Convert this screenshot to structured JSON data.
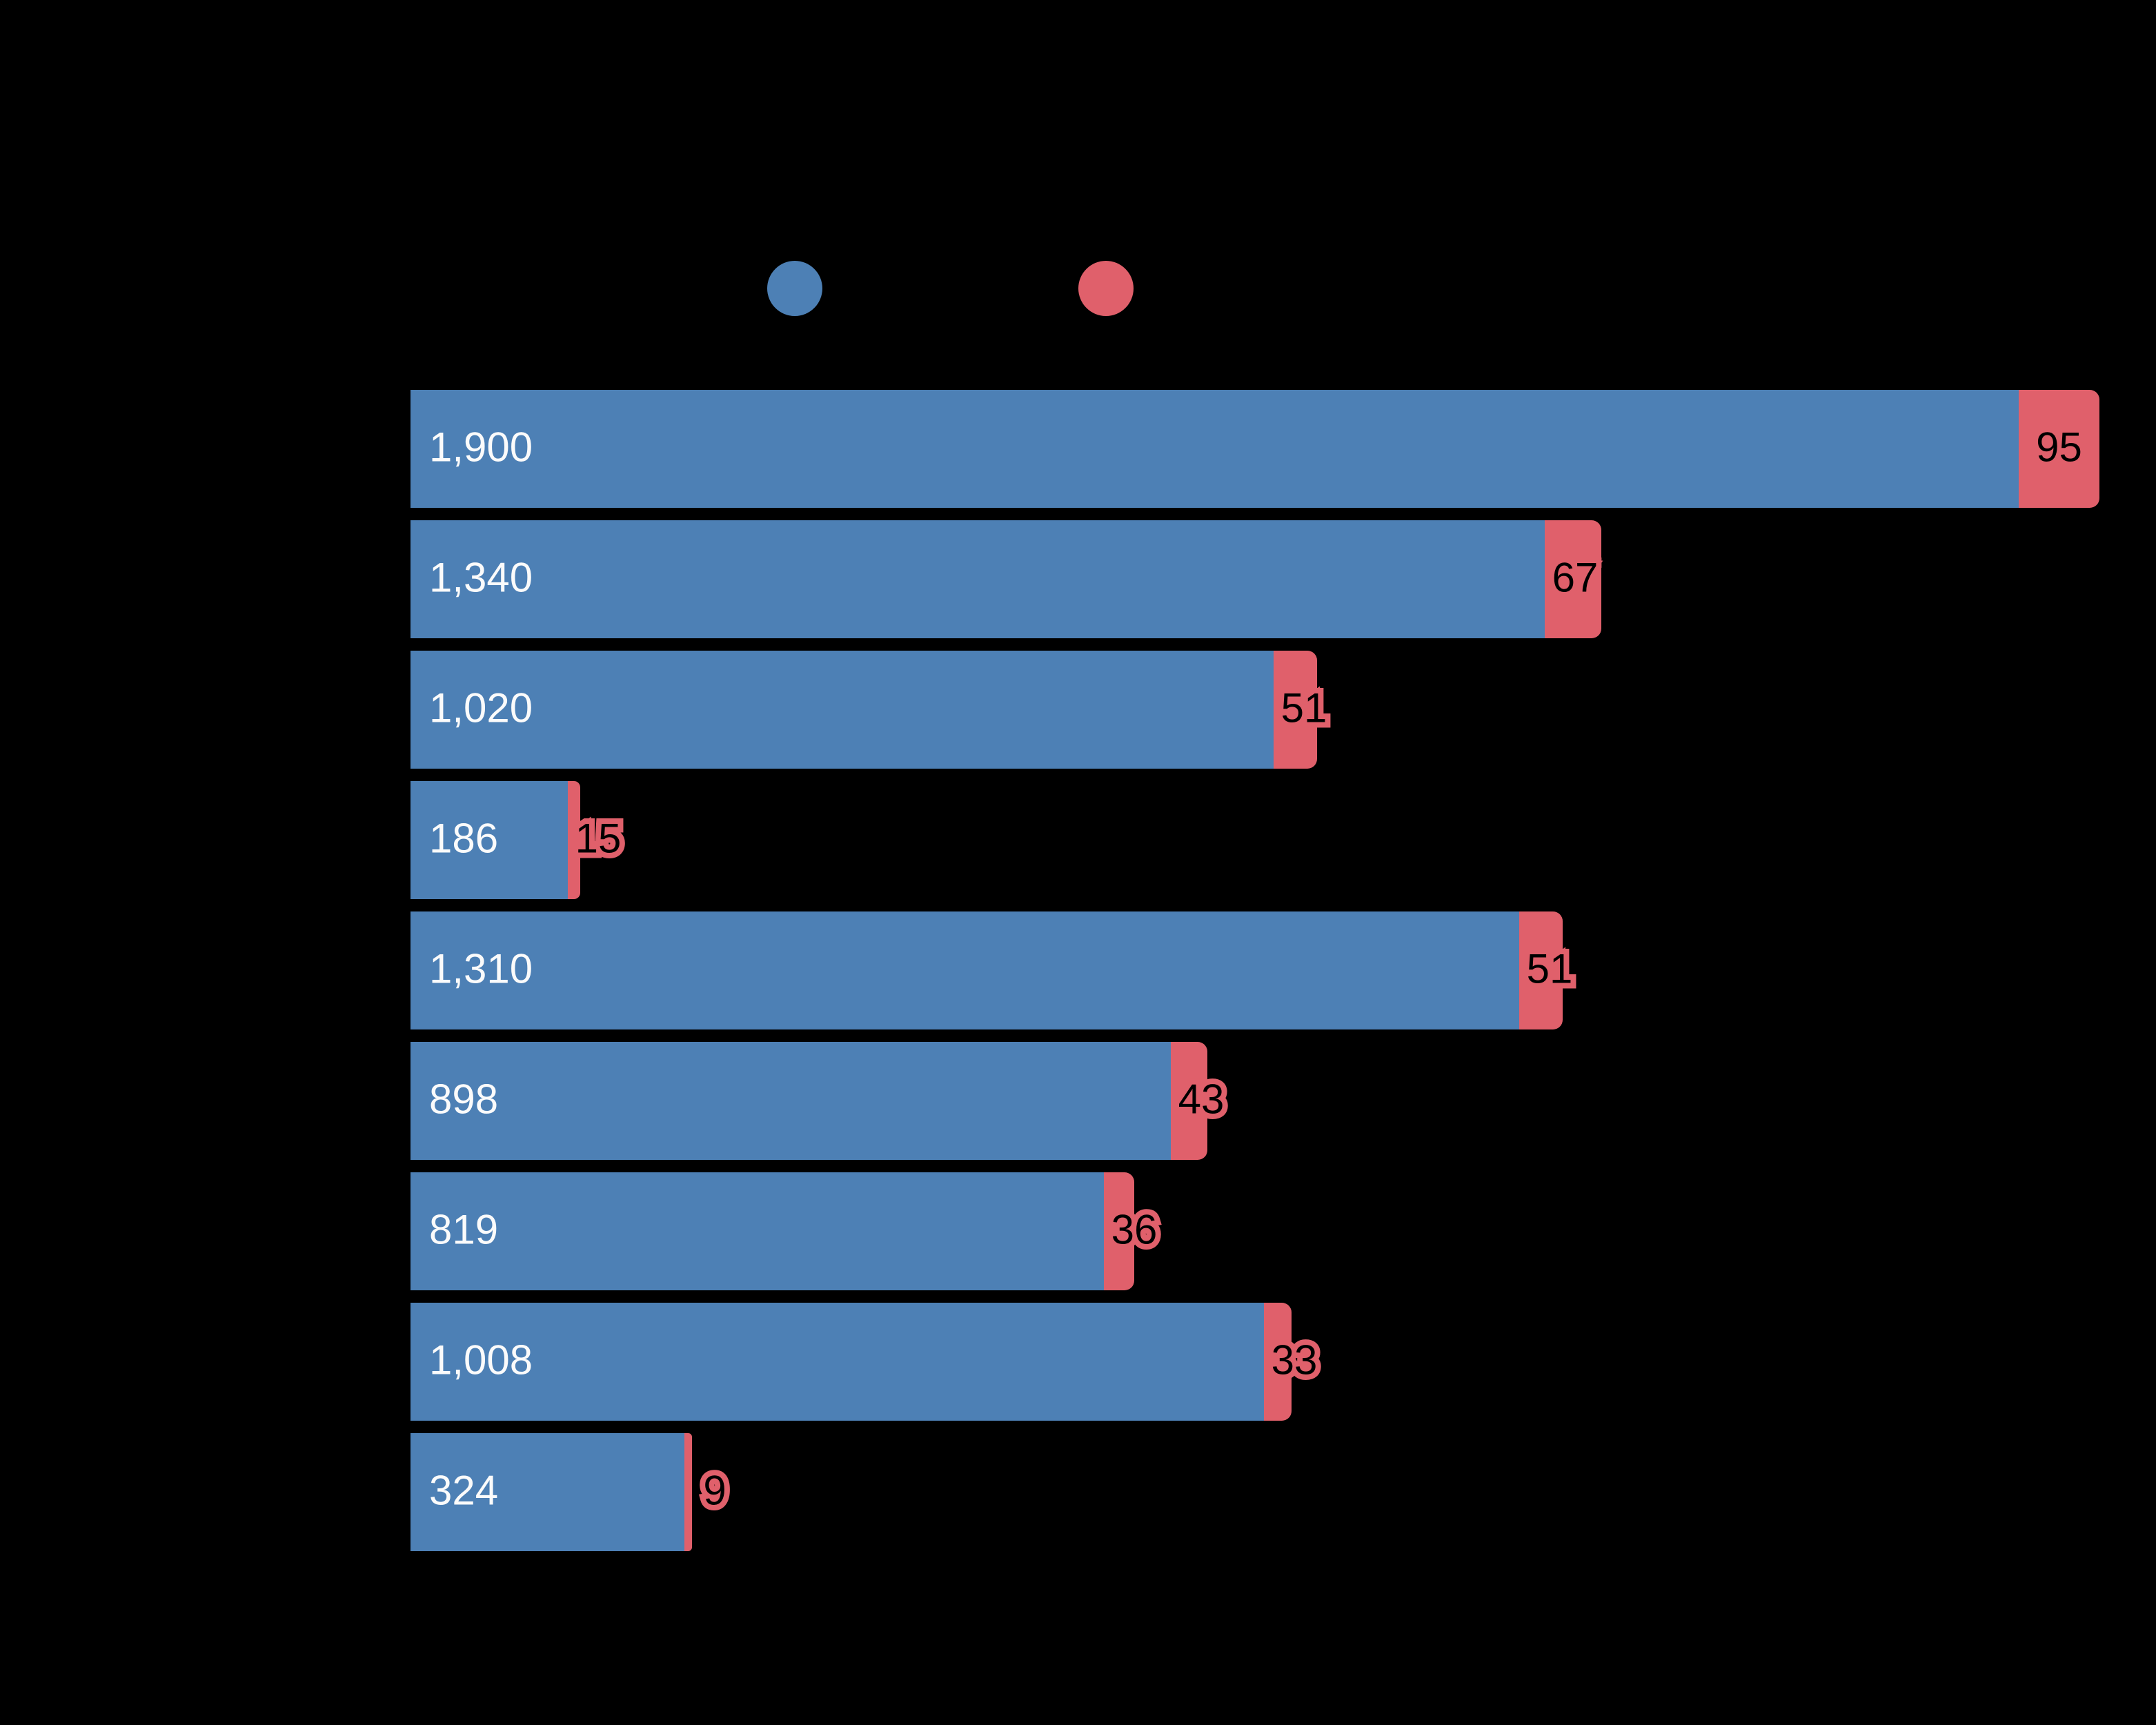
{
  "colors": {
    "background": "#000000",
    "primary": "#4d80b5",
    "secondary": "#e0606b",
    "label_on_primary": "#fbfbfb",
    "label_on_secondary": "#000000"
  },
  "legend": {
    "items": [
      {
        "name": "legend-swatch-primary",
        "color": "#4d80b5"
      },
      {
        "name": "legend-swatch-secondary",
        "color": "#e0606b"
      }
    ]
  },
  "chart_data": {
    "type": "bar",
    "orientation": "horizontal",
    "stacked": true,
    "grid": false,
    "title": "",
    "xlabel": "",
    "ylabel": "",
    "categories": [
      "",
      "",
      "",
      "",
      "",
      "",
      "",
      "",
      ""
    ],
    "series": [
      {
        "name": "primary-series",
        "color": "#4d80b5",
        "values": [
          1900,
          1340,
          1020,
          186,
          1310,
          898,
          819,
          1008,
          324
        ],
        "labels": [
          "1,900",
          "1,340",
          "1,020",
          "186",
          "1,310",
          "898",
          "819",
          "1,008",
          "324"
        ]
      },
      {
        "name": "secondary-series",
        "color": "#e0606b",
        "values": [
          95,
          67,
          51,
          15,
          51,
          43,
          36,
          33,
          9
        ],
        "labels": [
          "95",
          "67",
          "51",
          "15",
          "51",
          "43",
          "36",
          "33",
          "9"
        ]
      }
    ],
    "x_range": [
      0,
      2000
    ],
    "tick_labels_visible": false
  }
}
